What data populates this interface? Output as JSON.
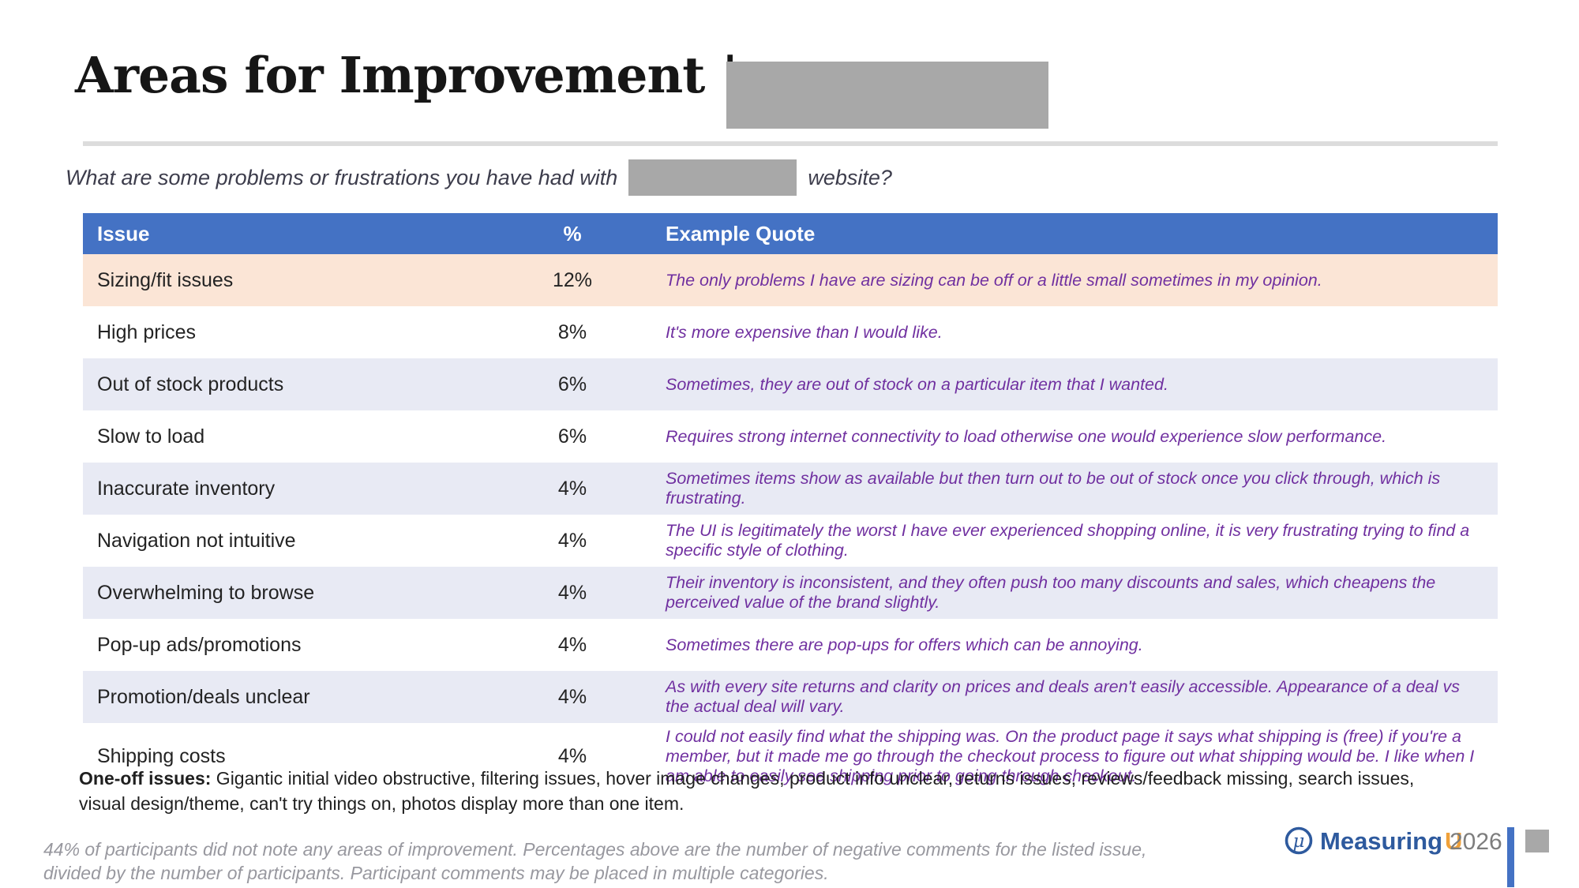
{
  "title": {
    "text": "Areas for Improvement |"
  },
  "subtitle": {
    "prefix": "What are some problems or frustrations you have had with",
    "suffix": "website?"
  },
  "table": {
    "headers": {
      "issue": "Issue",
      "pct": "%",
      "quote": "Example Quote"
    },
    "rows": [
      {
        "issue": "Sizing/fit issues",
        "pct": "12%",
        "quote": "The only problems I have are sizing can be off or a little small sometimes in my opinion."
      },
      {
        "issue": "High prices",
        "pct": "8%",
        "quote": "It's more expensive than I would like."
      },
      {
        "issue": "Out of stock products",
        "pct": "6%",
        "quote": "Sometimes, they are out of stock on a particular item that I wanted."
      },
      {
        "issue": "Slow to load",
        "pct": "6%",
        "quote": "Requires strong internet connectivity to load otherwise one would experience slow performance."
      },
      {
        "issue": "Inaccurate inventory",
        "pct": "4%",
        "quote": "Sometimes items show as available but then turn out to be out of stock once you click through, which is frustrating."
      },
      {
        "issue": "Navigation not intuitive",
        "pct": "4%",
        "quote": "The UI is legitimately the worst I have ever experienced shopping online, it is very frustrating trying to find a specific style of clothing."
      },
      {
        "issue": "Overwhelming to browse",
        "pct": "4%",
        "quote": "Their inventory is inconsistent, and they often push too many discounts and sales, which cheapens the perceived value of the brand slightly."
      },
      {
        "issue": "Pop-up ads/promotions",
        "pct": "4%",
        "quote": "Sometimes there are pop-ups for offers which can be annoying."
      },
      {
        "issue": "Promotion/deals unclear",
        "pct": "4%",
        "quote": "As with every site returns and clarity on prices and deals aren't easily accessible. Appearance of a deal vs the actual deal will vary."
      },
      {
        "issue": "Shipping costs",
        "pct": "4%",
        "quote": "I could not easily find what the shipping was. On the product page it says what shipping is (free) if you're a member, but it made me go through the checkout process to figure out what shipping would be. I like when I am able to easily see shipping prior to going through checkout."
      }
    ]
  },
  "one_off": {
    "label": "One-off issues:",
    "text": " Gigantic initial video obstructive, filtering issues, hover image changes, product info unclear, returns issues, reviews/feedback missing, search issues, visual design/theme, can't try things on, photos display more than one item."
  },
  "footnote": {
    "text": "44% of participants did not note any areas of improvement. Percentages above are the number of negative comments for the listed issue, divided by the number of participants. Participant comments may be placed in multiple categories."
  },
  "footer": {
    "brand_measuring": "Measuring",
    "brand_u": "U",
    "year": "2026",
    "logo_glyph": "μ"
  },
  "colors": {
    "header_blue": "#4472c4",
    "row_peach": "#fbe5d6",
    "row_lavender": "#e8eaf4",
    "quote_purple": "#7030a0",
    "brand_navy": "#2e5a9e",
    "brand_orange": "#f0a13a",
    "redact_gray": "#a8a8a8",
    "rule_gray": "#dcdcdc"
  }
}
